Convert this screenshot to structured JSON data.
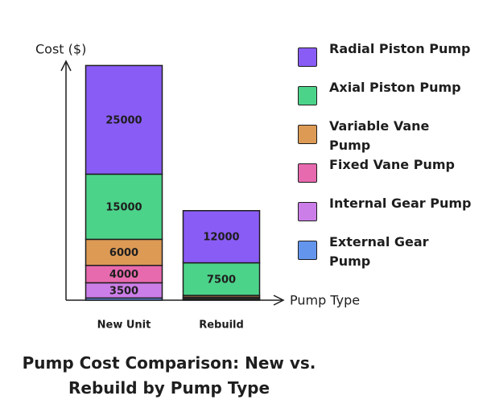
{
  "chart_data": {
    "type": "bar",
    "stacked": true,
    "title": "Pump Cost Comparison: New vs. Rebuild by Pump Type",
    "x_label": "Pump Type",
    "y_label": "Cost ($)",
    "categories": [
      "New Unit",
      "Rebuild"
    ],
    "series": [
      {
        "name": "External Gear Pump",
        "color": "#6495ed",
        "values": [
          500,
          200
        ]
      },
      {
        "name": "Internal Gear Pump",
        "color": "#cc7ee8",
        "values": [
          3500,
          200
        ]
      },
      {
        "name": "Fixed Vane Pump",
        "color": "#e86aae",
        "values": [
          4000,
          300
        ]
      },
      {
        "name": "Variable Vane Pump",
        "color": "#dd9a55",
        "values": [
          6000,
          400
        ]
      },
      {
        "name": "Axial Piston Pump",
        "color": "#4cd38a",
        "values": [
          15000,
          7500
        ]
      },
      {
        "name": "Radial Piston Pump",
        "color": "#8a5cf6",
        "values": [
          25000,
          12000
        ]
      }
    ],
    "ylim": [
      0,
      55000
    ],
    "grid": false
  }
}
